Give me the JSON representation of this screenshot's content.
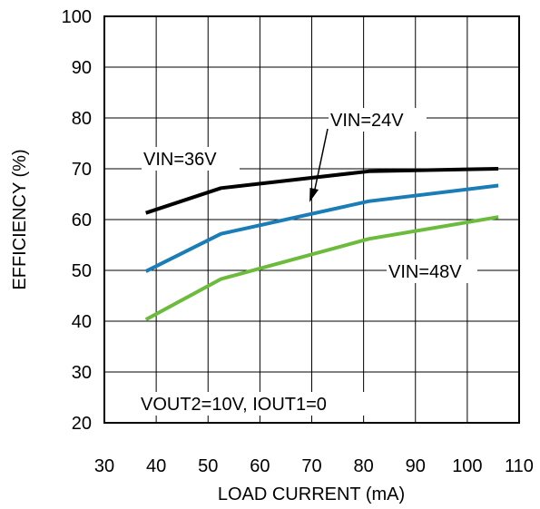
{
  "chart_data": {
    "type": "line",
    "xlabel": "LOAD CURRENT (mA)",
    "ylabel": "EFFICIENCY (%)",
    "xlim": [
      30,
      110
    ],
    "ylim": [
      20,
      100
    ],
    "xticks": [
      30,
      40,
      50,
      60,
      70,
      80,
      90,
      100,
      110
    ],
    "yticks": [
      20,
      30,
      40,
      50,
      60,
      70,
      80,
      90,
      100
    ],
    "grid": true,
    "series": [
      {
        "name": "VIN=36V",
        "color": "#000000",
        "x": [
          38,
          52.5,
          81,
          106
        ],
        "y": [
          61.3,
          66.2,
          69.5,
          70.0
        ]
      },
      {
        "name": "VIN=24V",
        "color": "#1a7db8",
        "x": [
          38,
          52.5,
          81,
          106
        ],
        "y": [
          49.8,
          57.2,
          63.6,
          66.7
        ]
      },
      {
        "name": "VIN=48V",
        "color": "#6cbb3c",
        "x": [
          38,
          52.5,
          81,
          106
        ],
        "y": [
          40.3,
          48.3,
          56.2,
          60.5
        ]
      }
    ],
    "annotations": [
      "VIN=36V",
      "VIN=24V",
      "VIN=48V",
      "VOUT2=10V, IOUT1=0"
    ]
  }
}
